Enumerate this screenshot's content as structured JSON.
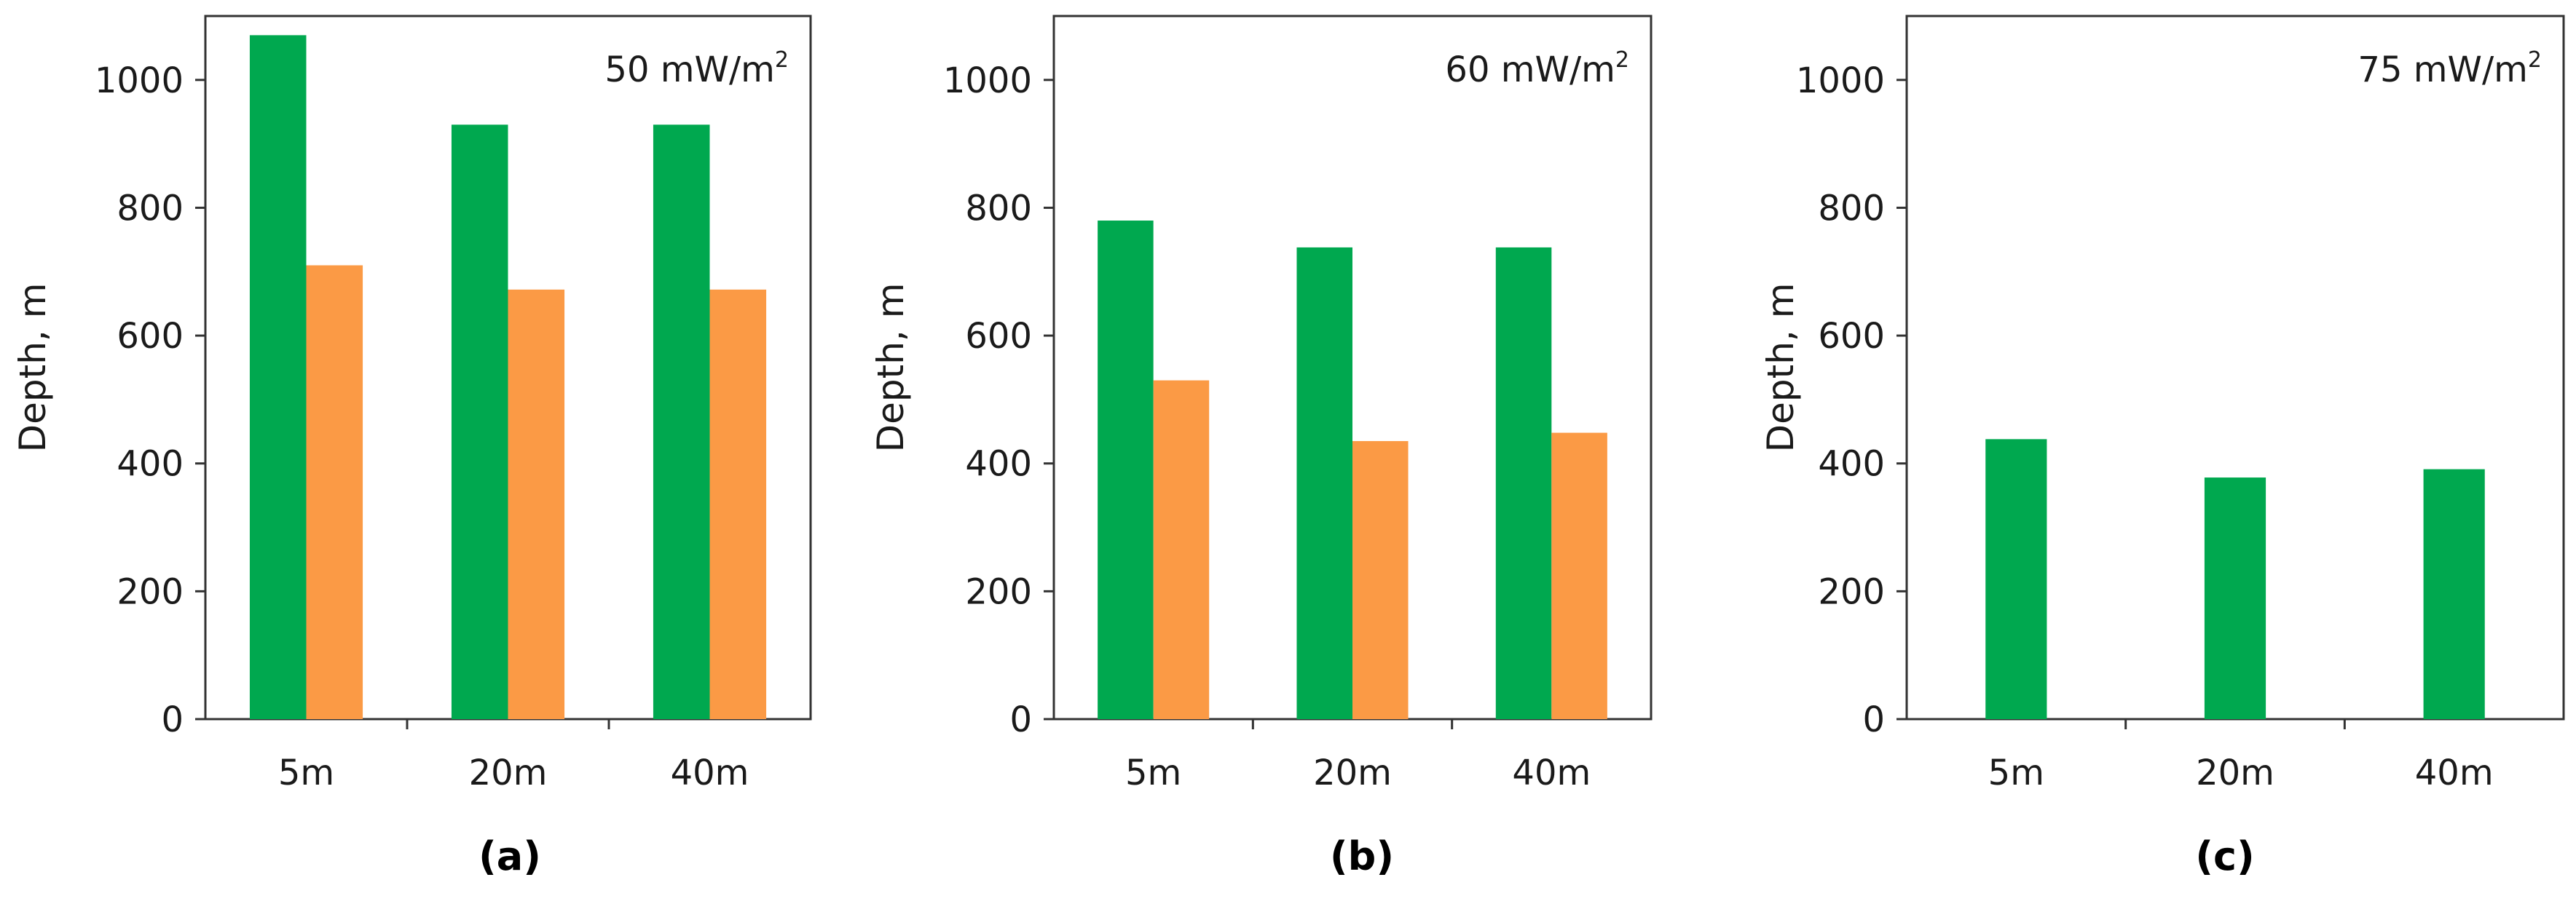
{
  "chart_data": [
    {
      "type": "bar",
      "panel_label": "(a)",
      "annotation": {
        "text": "50 mW/m",
        "sup": "2"
      },
      "ylabel": "Depth, m",
      "ylim": [
        0,
        1100
      ],
      "yticks": [
        "0",
        "200",
        "400",
        "600",
        "800",
        "1000"
      ],
      "categories": [
        "5m",
        "20m",
        "40m"
      ],
      "series": [
        {
          "name": "green",
          "color": "#00a84f",
          "values": [
            1070,
            930,
            930
          ]
        },
        {
          "name": "orange",
          "color": "#fb9a45",
          "values": [
            710,
            672,
            672
          ]
        }
      ]
    },
    {
      "type": "bar",
      "panel_label": "(b)",
      "annotation": {
        "text": "60 mW/m",
        "sup": "2"
      },
      "ylabel": "Depth, m",
      "ylim": [
        0,
        1100
      ],
      "yticks": [
        "0",
        "200",
        "400",
        "600",
        "800",
        "1000"
      ],
      "categories": [
        "5m",
        "20m",
        "40m"
      ],
      "series": [
        {
          "name": "green",
          "color": "#00a84f",
          "values": [
            780,
            738,
            738
          ]
        },
        {
          "name": "orange",
          "color": "#fb9a45",
          "values": [
            530,
            435,
            448
          ]
        }
      ]
    },
    {
      "type": "bar",
      "panel_label": "(c)",
      "annotation": {
        "text": "75 mW/m",
        "sup": "2"
      },
      "ylabel": "Depth, m",
      "ylim": [
        0,
        1100
      ],
      "yticks": [
        "0",
        "200",
        "400",
        "600",
        "800",
        "1000"
      ],
      "categories": [
        "5m",
        "20m",
        "40m"
      ],
      "series": [
        {
          "name": "green",
          "color": "#00a84f",
          "values": [
            438,
            378,
            391
          ]
        }
      ]
    }
  ]
}
